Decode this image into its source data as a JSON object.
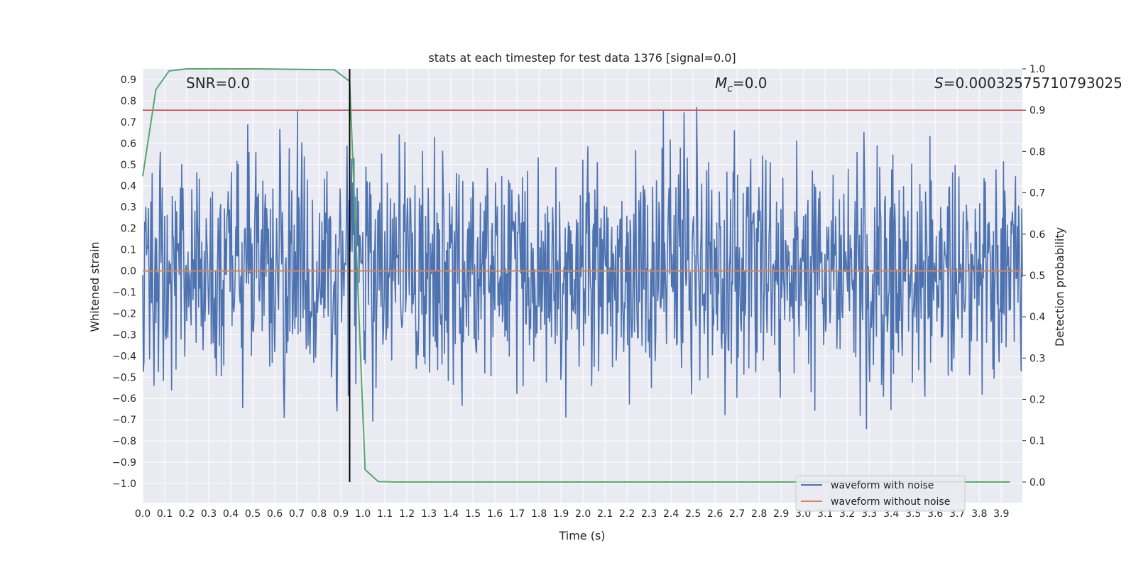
{
  "chart_data": {
    "type": "line",
    "title": "stats at each timestep for test data 1376 [signal=0.0]",
    "xlabel": "Time (s)",
    "ylabel": "Whitened strain",
    "y2label": "Detection probability",
    "xlim": [
      0.0,
      3.996
    ],
    "ylim": [
      -1.09,
      0.95
    ],
    "y2lim": [
      -0.05,
      1.0
    ],
    "xticks": [
      "0.0",
      "0.1",
      "0.2",
      "0.3",
      "0.4",
      "0.5",
      "0.6",
      "0.7",
      "0.8",
      "0.9",
      "1.0",
      "1.1",
      "1.2",
      "1.3",
      "1.4",
      "1.5",
      "1.6",
      "1.7",
      "1.8",
      "1.9",
      "2.0",
      "2.1",
      "2.2",
      "2.3",
      "2.4",
      "2.5",
      "2.6",
      "2.7",
      "2.8",
      "2.9",
      "3.0",
      "3.1",
      "3.2",
      "3.3",
      "3.4",
      "3.5",
      "3.6",
      "3.7",
      "3.8",
      "3.9"
    ],
    "yticks": [
      "0.9",
      "0.8",
      "0.7",
      "0.6",
      "0.5",
      "0.4",
      "0.3",
      "0.2",
      "0.1",
      "0.0",
      "−0.1",
      "−0.2",
      "−0.3",
      "−0.4",
      "−0.5",
      "−0.6",
      "−0.7",
      "−0.8",
      "−0.9",
      "−1.0"
    ],
    "y2ticks": [
      "0.0",
      "0.1",
      "0.2",
      "0.3",
      "0.4",
      "0.5",
      "0.6",
      "0.7",
      "0.8",
      "0.9",
      "1.0"
    ],
    "annotations": {
      "snr": "SNR=0.0",
      "mc_symbol": "M",
      "mc_sub": "c",
      "mc_value": "=0.0",
      "s_symbol": "S",
      "s_value": "=0.00032575710793025"
    },
    "threshold": {
      "value": 0.9,
      "axis": "right",
      "color": "#c44e52"
    },
    "marker_time": 0.94,
    "series": [
      {
        "name": "waveform with noise",
        "color": "#4c72b0",
        "kind": "noise",
        "typical_amplitude": 0.35,
        "min": -1.0,
        "max": 0.87
      },
      {
        "name": "waveform without noise",
        "color": "#dd8452",
        "kind": "constant",
        "value": 0.0
      },
      {
        "name": "detection probability",
        "color": "#55a868",
        "axis": "right",
        "x": [
          0.0,
          0.06,
          0.12,
          0.2,
          0.5,
          0.87,
          0.94,
          1.01,
          1.07,
          1.15,
          2.0,
          3.94
        ],
        "values": [
          0.74,
          0.95,
          0.995,
          1.0,
          1.0,
          0.998,
          0.97,
          0.03,
          0.001,
          0.0,
          0.0,
          0.0
        ]
      }
    ],
    "legend_position": "lower-right",
    "grid": true
  }
}
